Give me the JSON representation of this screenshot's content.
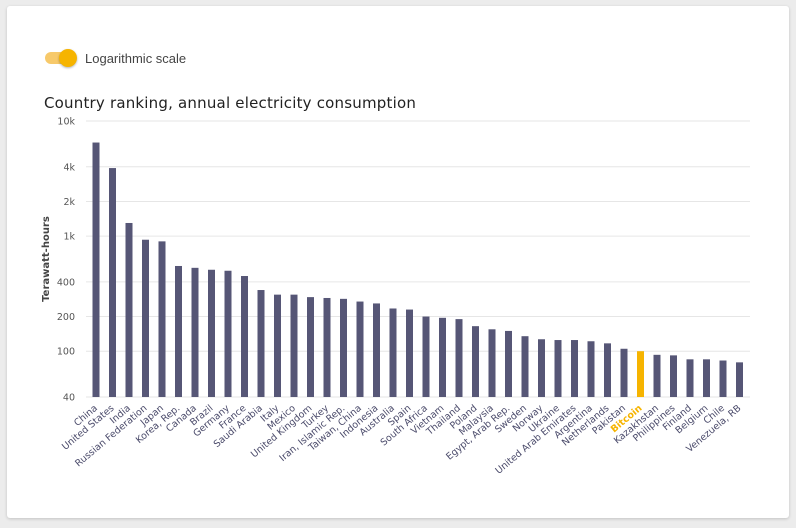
{
  "controls": {
    "log_scale_label": "Logarithmic scale",
    "log_scale_on": true
  },
  "colors": {
    "bar": "#565676",
    "highlight": "#f6b400",
    "grid": "#e6e6e6"
  },
  "chart_data": {
    "type": "bar",
    "title": "Country ranking, annual electricity consumption",
    "xlabel": "",
    "ylabel": "Terawatt-hours",
    "yscale": "log",
    "ylim": [
      40,
      10000
    ],
    "yticks": [
      40,
      100,
      200,
      400,
      1000,
      2000,
      4000,
      10000
    ],
    "ytick_labels": [
      "40",
      "100",
      "200",
      "400",
      "1k",
      "2k",
      "4k",
      "10k"
    ],
    "grid": true,
    "highlight": "Bitcoin",
    "categories": [
      "China",
      "United States",
      "India",
      "Russian Federation",
      "Japan",
      "Korea, Rep.",
      "Canada",
      "Brazil",
      "Germany",
      "France",
      "Saudi Arabia",
      "Italy",
      "Mexico",
      "United Kingdom",
      "Turkey",
      "Iran, Islamic Rep.",
      "Taiwan, China",
      "Indonesia",
      "Australia",
      "Spain",
      "South Africa",
      "Vietnam",
      "Thailand",
      "Poland",
      "Malaysia",
      "Egypt, Arab Rep.",
      "Sweden",
      "Norway",
      "Ukraine",
      "United Arab Emirates",
      "Argentina",
      "Netherlands",
      "Pakistan",
      "Bitcoin",
      "Kazakhstan",
      "Philippines",
      "Finland",
      "Belgium",
      "Chile",
      "Venezuela, RB"
    ],
    "values": [
      6500,
      3900,
      1300,
      930,
      900,
      550,
      530,
      510,
      500,
      450,
      340,
      310,
      310,
      295,
      290,
      285,
      270,
      260,
      235,
      230,
      200,
      195,
      190,
      165,
      155,
      150,
      135,
      127,
      125,
      125,
      122,
      117,
      105,
      100,
      93,
      92,
      85,
      85,
      83,
      80
    ]
  }
}
